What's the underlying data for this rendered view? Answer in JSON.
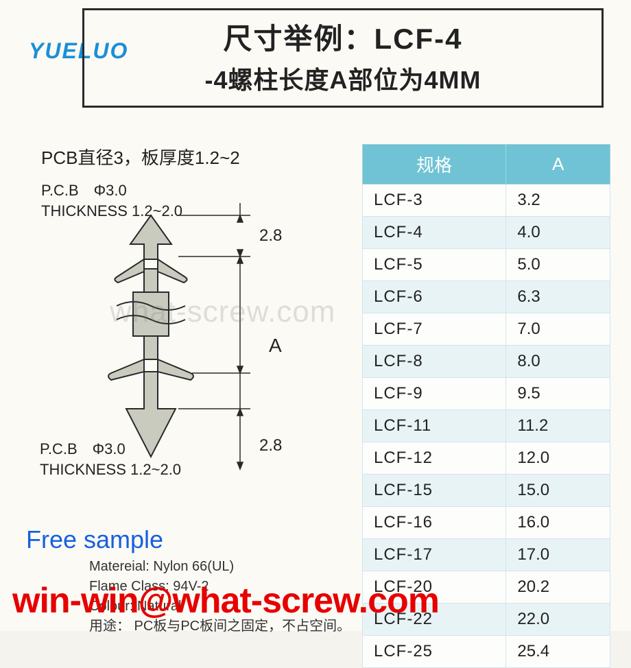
{
  "logo": {
    "text": "YUELUO"
  },
  "title": {
    "line1": "尺寸举例：LCF-4",
    "line2": "-4螺柱长度A部位为4MM"
  },
  "diagram": {
    "heading": "PCB直径3，板厚度1.2~2",
    "pcb_label": "P.C.B　Φ3.0",
    "thickness_label": "THICKNESS 1.2~2.0",
    "dim_upper": "2.8",
    "dim_center": "A",
    "dim_lower": "2.8",
    "stroke_color": "#2a2a2a",
    "fill_color": "#c9cbbf"
  },
  "table": {
    "header_bg": "#6fc3d4",
    "header_fg": "#ffffff",
    "row_alt_bg": "#e8f3f6",
    "border_color": "#d0e6ea",
    "columns": [
      "规格",
      "A"
    ],
    "rows": [
      [
        "LCF-3",
        "3.2"
      ],
      [
        "LCF-4",
        "4.0"
      ],
      [
        "LCF-5",
        "5.0"
      ],
      [
        "LCF-6",
        "6.3"
      ],
      [
        "LCF-7",
        "7.0"
      ],
      [
        "LCF-8",
        "8.0"
      ],
      [
        "LCF-9",
        "9.5"
      ],
      [
        "LCF-11",
        "11.2"
      ],
      [
        "LCF-12",
        "12.0"
      ],
      [
        "LCF-15",
        "15.0"
      ],
      [
        "LCF-16",
        "16.0"
      ],
      [
        "LCF-17",
        "17.0"
      ],
      [
        "LCF-20",
        "20.2"
      ],
      [
        "LCF-22",
        "22.0"
      ],
      [
        "LCF-25",
        "25.4"
      ]
    ]
  },
  "free_sample": "Free sample",
  "material": {
    "line1": "Matereial: Nylon 66(UL)",
    "line2": "Flame Class: 94V-2",
    "line3": "Colour: Natural",
    "line4": "用途： PC板与PC板间之固定，不占空间。"
  },
  "email": "win-win@what-screw.com",
  "watermark": "what-screw.com",
  "colors": {
    "background": "#fcfaf5",
    "text": "#222222",
    "brand_blue": "#1a8fd8",
    "link_blue": "#1560e0",
    "email_red": "#e60000"
  }
}
